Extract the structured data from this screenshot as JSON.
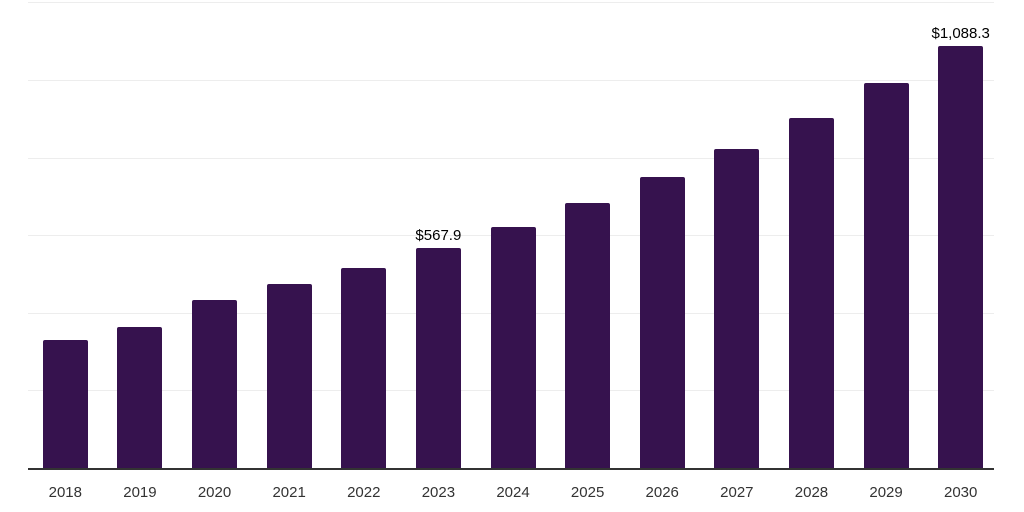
{
  "chart_data": {
    "type": "bar",
    "title": "",
    "xlabel": "",
    "ylabel": "",
    "categories": [
      "2018",
      "2019",
      "2020",
      "2021",
      "2022",
      "2023",
      "2024",
      "2025",
      "2026",
      "2027",
      "2028",
      "2029",
      "2030"
    ],
    "values": [
      330,
      363,
      433,
      474,
      516,
      567.9,
      621,
      683,
      749,
      822,
      903,
      993,
      1088.3
    ],
    "data_labels": {
      "2023": "$567.9",
      "2030": "$1,088.3"
    },
    "ylim": [
      0,
      1200
    ],
    "gridline_step": 200,
    "grid": "horizontal",
    "legend_position": "none",
    "colors": {
      "bar": "#36124E",
      "axis_line": "#333333",
      "gridline": "#ededed",
      "tick_label": "#333333",
      "data_label": "#000000",
      "background": "#ffffff"
    }
  }
}
